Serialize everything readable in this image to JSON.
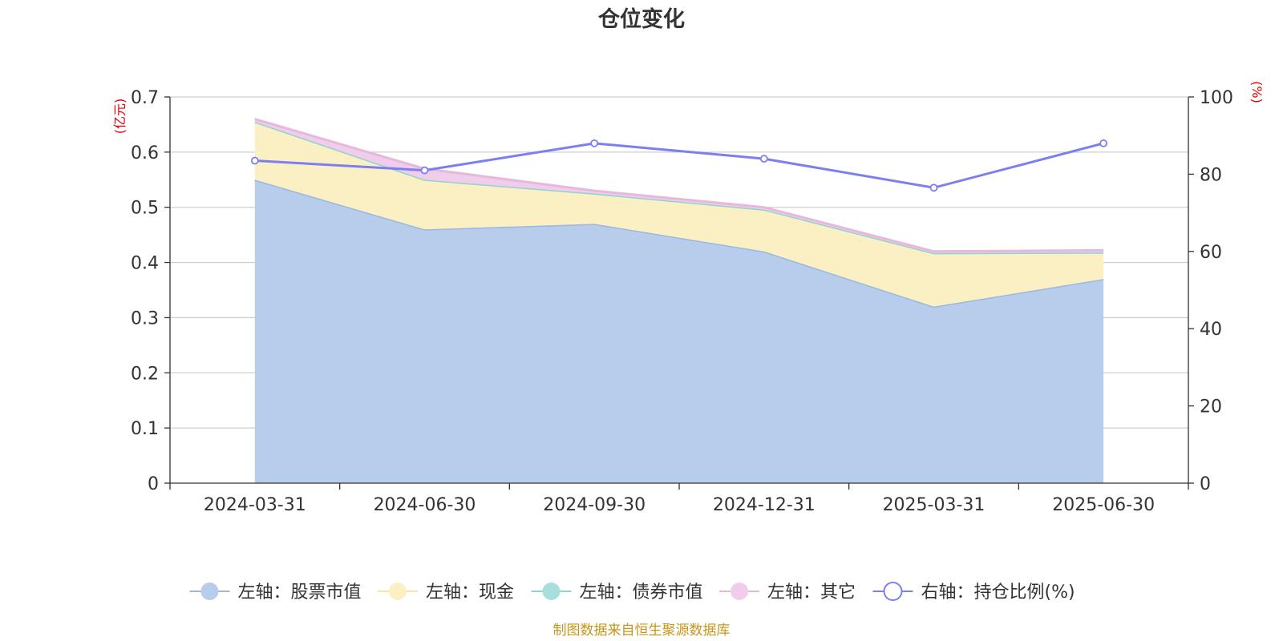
{
  "chart_data": {
    "type": "area",
    "title": "仓位变化",
    "categories": [
      "2024-03-31",
      "2024-06-30",
      "2024-09-30",
      "2024-12-31",
      "2025-03-31",
      "2025-06-30"
    ],
    "left_axis": {
      "unit_label": "(亿元)",
      "ylim": [
        0,
        0.7
      ],
      "ticks": [
        "0",
        "0.1",
        "0.2",
        "0.3",
        "0.4",
        "0.5",
        "0.6",
        "0.7"
      ]
    },
    "right_axis": {
      "unit_label": "(%)",
      "ylim": [
        0,
        100
      ],
      "ticks": [
        "0",
        "20",
        "40",
        "60",
        "80",
        "100"
      ]
    },
    "stacked_series": [
      {
        "name": "左轴：股票市值",
        "color": "#9bb8e0",
        "fill": "#b8cdeb",
        "values": [
          0.55,
          0.46,
          0.47,
          0.42,
          0.32,
          0.37
        ]
      },
      {
        "name": "左轴：现金",
        "color": "#f7e6a6",
        "fill": "#faf0c4",
        "values": [
          0.105,
          0.09,
          0.055,
          0.076,
          0.097,
          0.048
        ]
      },
      {
        "name": "左轴：债券市值",
        "color": "#8fd3d3",
        "fill": "#a8dede",
        "values": [
          0,
          0,
          0,
          0,
          0,
          0
        ]
      },
      {
        "name": "左轴：其它",
        "color": "#e6b8dc",
        "fill": "#f0cdea",
        "values": [
          0.005,
          0.02,
          0.005,
          0.004,
          0.003,
          0.004
        ]
      }
    ],
    "line_series": {
      "name": "右轴：持仓比例(%)",
      "color": "#7b7ff0",
      "values": [
        83.5,
        81,
        88,
        84,
        76.5,
        88
      ]
    },
    "grid": true,
    "legend_position": "bottom"
  },
  "source": "制图数据来自恒生聚源数据库"
}
